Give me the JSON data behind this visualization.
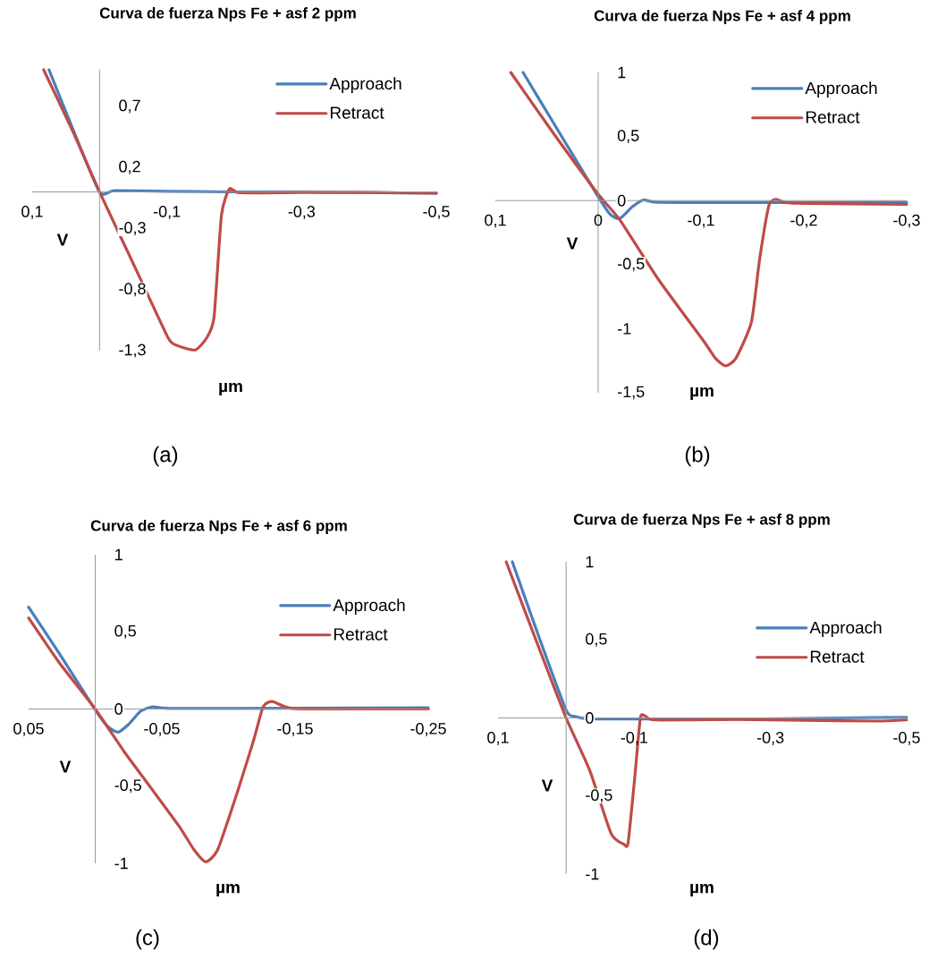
{
  "chart_data": [
    {
      "type": "line",
      "title": "Curva de fuerza Nps Fe + asf 2 ppm",
      "xlabel": "µm",
      "ylabel": "V",
      "annotations": [
        "(a)"
      ],
      "legend": "top right",
      "xlim": [
        0.1,
        -0.5
      ],
      "ylim": [
        -1.3,
        1.0
      ],
      "xticks": [
        {
          "value": 0.1,
          "label": "0,1"
        },
        {
          "value": -0.1,
          "label": "-0,1"
        },
        {
          "value": -0.3,
          "label": "-0,3"
        },
        {
          "value": -0.5,
          "label": "-0,5"
        }
      ],
      "yticks": [
        {
          "value": -1.3,
          "label": "-1,3"
        },
        {
          "value": -0.8,
          "label": "-0,8"
        },
        {
          "value": -0.3,
          "label": "-0,3"
        },
        {
          "value": 0.2,
          "label": "0,2"
        },
        {
          "value": 0.7,
          "label": "0,7"
        }
      ],
      "series": [
        {
          "name": "Approach",
          "color": "#4a7ebb",
          "x": [
            0.075,
            0.04,
            0,
            -0.022,
            -0.1,
            -0.19,
            -0.3,
            -0.4,
            -0.5
          ],
          "values": [
            1.0,
            0.52,
            0.0,
            0.01,
            0.005,
            0.0,
            0.0,
            -0.005,
            -0.01
          ]
        },
        {
          "name": "Retract",
          "color": "#be4b48",
          "x": [
            0.083,
            0.04,
            0,
            -0.058,
            -0.102,
            -0.115,
            -0.142,
            -0.159,
            -0.17,
            -0.181,
            -0.193,
            -0.208,
            -0.3,
            -0.4,
            -0.5
          ],
          "values": [
            1.0,
            0.5,
            0.0,
            -0.68,
            -1.196,
            -1.257,
            -1.294,
            -1.196,
            -1.025,
            -0.19,
            0.025,
            -0.007,
            -0.005,
            -0.005,
            -0.01
          ]
        }
      ]
    },
    {
      "type": "line",
      "title": "Curva de fuerza Nps Fe + asf 4 ppm",
      "xlabel": "µm",
      "ylabel": "V",
      "annotations": [
        "(b)"
      ],
      "legend": "top right",
      "xlim": [
        0.1,
        -0.3
      ],
      "ylim": [
        -1.5,
        1
      ],
      "xticks": [
        {
          "value": 0.1,
          "label": "0,1"
        },
        {
          "value": 0,
          "label": "0"
        },
        {
          "value": -0.1,
          "label": "-0,1"
        },
        {
          "value": -0.2,
          "label": "-0,2"
        },
        {
          "value": -0.3,
          "label": "-0,3"
        }
      ],
      "yticks": [
        {
          "value": -1.5,
          "label": "-1,5"
        },
        {
          "value": -1,
          "label": "-1"
        },
        {
          "value": -0.5,
          "label": "-0,5"
        },
        {
          "value": 0,
          "label": "0"
        },
        {
          "value": 0.5,
          "label": "0,5"
        },
        {
          "value": 1,
          "label": "1"
        }
      ],
      "series": [
        {
          "name": "Approach",
          "color": "#4a7ebb",
          "x": [
            0.073,
            0.043,
            0,
            -0.012,
            -0.021,
            -0.033,
            -0.044,
            -0.059,
            -0.15,
            -0.3
          ],
          "values": [
            1.0,
            0.6,
            0.03,
            -0.11,
            -0.14,
            -0.05,
            0.005,
            -0.014,
            -0.015,
            -0.014
          ]
        },
        {
          "name": "Retract",
          "color": "#be4b48",
          "x": [
            0.085,
            0.043,
            0,
            -0.021,
            -0.059,
            -0.102,
            -0.114,
            -0.124,
            -0.134,
            -0.149,
            -0.157,
            -0.166,
            -0.173,
            -0.189,
            -0.3
          ],
          "values": [
            1.0,
            0.52,
            0.05,
            -0.15,
            -0.62,
            -1.09,
            -1.23,
            -1.29,
            -1.23,
            -0.95,
            -0.46,
            -0.04,
            0.01,
            -0.02,
            -0.03
          ]
        }
      ]
    },
    {
      "type": "line",
      "title": "Curva de fuerza Nps Fe + asf 6 ppm",
      "xlabel": "µm",
      "ylabel": "V",
      "annotations": [
        "(c)"
      ],
      "legend": "top right",
      "xlim": [
        0.05,
        -0.25
      ],
      "ylim": [
        -1,
        1
      ],
      "xticks": [
        {
          "value": 0.05,
          "label": "0,05"
        },
        {
          "value": -0.05,
          "label": "-0,05"
        },
        {
          "value": -0.15,
          "label": "-0,15"
        },
        {
          "value": -0.25,
          "label": "-0,25"
        }
      ],
      "yticks": [
        {
          "value": -1,
          "label": "-1"
        },
        {
          "value": -0.5,
          "label": "-0,5"
        },
        {
          "value": 0,
          "label": "0"
        },
        {
          "value": 0.5,
          "label": "0,5"
        },
        {
          "value": 1,
          "label": "1"
        }
      ],
      "series": [
        {
          "name": "Approach",
          "color": "#4a7ebb",
          "x": [
            0.05,
            0.027,
            0,
            -0.009,
            -0.017,
            -0.025,
            -0.034,
            -0.043,
            -0.056,
            -0.15,
            -0.25
          ],
          "values": [
            0.66,
            0.36,
            -0.005,
            -0.11,
            -0.15,
            -0.1,
            -0.015,
            0.014,
            0.004,
            0.005,
            0.008
          ]
        },
        {
          "name": "Retract",
          "color": "#be4b48",
          "x": [
            0.05,
            0.027,
            0,
            -0.022,
            -0.04,
            -0.063,
            -0.074,
            -0.083,
            -0.092,
            -0.107,
            -0.119,
            -0.126,
            -0.133,
            -0.148,
            -0.2,
            -0.25
          ],
          "values": [
            0.59,
            0.3,
            0,
            -0.28,
            -0.49,
            -0.76,
            -0.91,
            -0.99,
            -0.91,
            -0.53,
            -0.2,
            0.014,
            0.048,
            0.004,
            0.0,
            0.0
          ]
        }
      ]
    },
    {
      "type": "line",
      "title": "Curva de fuerza Nps Fe + asf 8 ppm",
      "xlabel": "µm",
      "ylabel": "V",
      "annotations": [
        "(d)"
      ],
      "legend": "top right",
      "xlim": [
        0.1,
        -0.5
      ],
      "ylim": [
        -1,
        1
      ],
      "xticks": [
        {
          "value": 0.1,
          "label": "0,1"
        },
        {
          "value": -0.1,
          "label": "-0,1"
        },
        {
          "value": -0.3,
          "label": "-0,3"
        },
        {
          "value": -0.5,
          "label": "-0,5"
        }
      ],
      "yticks": [
        {
          "value": -1,
          "label": "-1"
        },
        {
          "value": -0.5,
          "label": "-0,5"
        },
        {
          "value": 0,
          "label": "0"
        },
        {
          "value": 0.5,
          "label": "0,5"
        },
        {
          "value": 1,
          "label": "1"
        }
      ],
      "series": [
        {
          "name": "Approach",
          "color": "#4a7ebb",
          "x": [
            0.079,
            0.04,
            0,
            -0.013,
            -0.035,
            -0.15,
            -0.289,
            -0.4,
            -0.5
          ],
          "values": [
            1.0,
            0.52,
            0.05,
            0.01,
            -0.006,
            -0.006,
            -0.006,
            0.0,
            0.004
          ]
        },
        {
          "name": "Retract",
          "color": "#be4b48",
          "x": [
            0.088,
            0.04,
            0,
            -0.035,
            -0.066,
            -0.085,
            -0.091,
            -0.101,
            -0.109,
            -0.116,
            -0.131,
            -0.25,
            -0.35,
            -0.455,
            -0.5
          ],
          "values": [
            1.0,
            0.45,
            0,
            -0.34,
            -0.74,
            -0.81,
            -0.8,
            -0.37,
            0,
            0.013,
            -0.013,
            -0.01,
            -0.015,
            -0.02,
            -0.013
          ]
        }
      ]
    }
  ]
}
